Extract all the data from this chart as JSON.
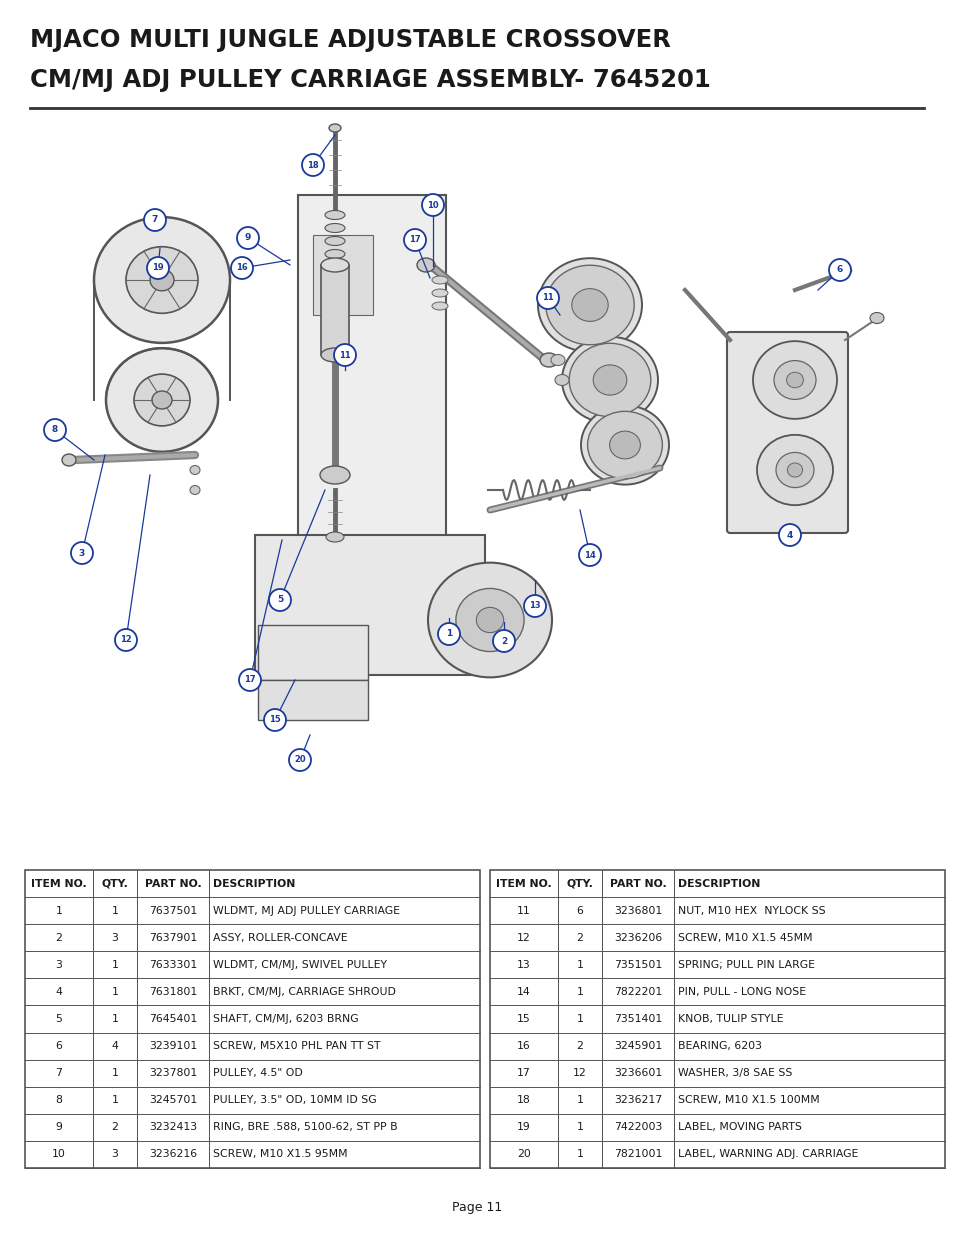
{
  "title_line1": "MJACO MULTI JUNGLE ADJUSTABLE CROSSOVER",
  "title_line2": "CM/MJ ADJ PULLEY CARRIAGE ASSEMBLY- 7645201",
  "page_number": "Page 11",
  "background_color": "#ffffff",
  "title_color": "#1a1a1a",
  "title_fontsize": 17.5,
  "border_color": "#333333",
  "table_border_color": "#555555",
  "table_text_color": "#1a1a1a",
  "table_fontsize": 7.8,
  "callout_color": "#1a3a9a",
  "left_table": {
    "headers": [
      "ITEM NO.",
      "QTY.",
      "PART NO.",
      "DESCRIPTION"
    ],
    "col_aligns": [
      "center",
      "center",
      "center",
      "left"
    ],
    "rows": [
      [
        "1",
        "1",
        "7637501",
        "WLDMT, MJ ADJ PULLEY CARRIAGE"
      ],
      [
        "2",
        "3",
        "7637901",
        "ASSY, ROLLER-CONCAVE"
      ],
      [
        "3",
        "1",
        "7633301",
        "WLDMT, CM/MJ, SWIVEL PULLEY"
      ],
      [
        "4",
        "1",
        "7631801",
        "BRKT, CM/MJ, CARRIAGE SHROUD"
      ],
      [
        "5",
        "1",
        "7645401",
        "SHAFT, CM/MJ, 6203 BRNG"
      ],
      [
        "6",
        "4",
        "3239101",
        "SCREW, M5X10 PHL PAN TT ST"
      ],
      [
        "7",
        "1",
        "3237801",
        "PULLEY, 4.5\" OD"
      ],
      [
        "8",
        "1",
        "3245701",
        "PULLEY, 3.5\" OD, 10MM ID SG"
      ],
      [
        "9",
        "2",
        "3232413",
        "RING, BRE .588, 5100-62, ST PP B"
      ],
      [
        "10",
        "3",
        "3236216",
        "SCREW, M10 X1.5 95MM"
      ]
    ]
  },
  "right_table": {
    "headers": [
      "ITEM NO.",
      "QTY.",
      "PART NO.",
      "DESCRIPTION"
    ],
    "col_aligns": [
      "center",
      "center",
      "center",
      "left"
    ],
    "rows": [
      [
        "11",
        "6",
        "3236801",
        "NUT, M10 HEX  NYLOCK SS"
      ],
      [
        "12",
        "2",
        "3236206",
        "SCREW, M10 X1.5 45MM"
      ],
      [
        "13",
        "1",
        "7351501",
        "SPRING; PULL PIN LARGE"
      ],
      [
        "14",
        "1",
        "7822201",
        "PIN, PULL - LONG NOSE"
      ],
      [
        "15",
        "1",
        "7351401",
        "KNOB, TULIP STYLE"
      ],
      [
        "16",
        "2",
        "3245901",
        "BEARING, 6203"
      ],
      [
        "17",
        "12",
        "3236601",
        "WASHER, 3/8 SAE SS"
      ],
      [
        "18",
        "1",
        "3236217",
        "SCREW, M10 X1.5 100MM"
      ],
      [
        "19",
        "1",
        "7422003",
        "LABEL, MOVING PARTS"
      ],
      [
        "20",
        "1",
        "7821001",
        "LABEL, WARNING ADJ. CARRIAGE"
      ]
    ]
  }
}
